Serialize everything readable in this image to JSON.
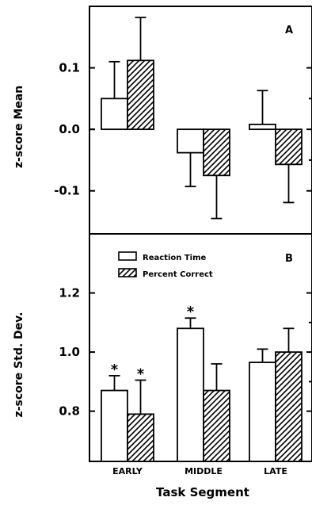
{
  "chart_data": [
    {
      "type": "bar",
      "panel_label": "A",
      "ylabel": "z-score Mean",
      "categories": [
        "EARLY",
        "MIDDLE",
        "LATE"
      ],
      "ylim": [
        -0.17,
        0.2
      ],
      "yticks": [
        -0.1,
        0.0,
        0.1
      ],
      "ytick_labels": [
        "-0.1",
        "0.0",
        "0.1"
      ],
      "series": [
        {
          "name": "Reaction Time",
          "pattern": "open",
          "values": [
            0.05,
            -0.038,
            0.008
          ],
          "errors": [
            0.06,
            0.055,
            0.055
          ],
          "error_side": [
            "up",
            "down",
            "up"
          ]
        },
        {
          "name": "Percent Correct",
          "pattern": "hatched",
          "values": [
            0.112,
            -0.075,
            -0.057
          ],
          "errors": [
            0.07,
            0.07,
            0.062
          ],
          "error_side": [
            "up",
            "down",
            "down"
          ]
        }
      ],
      "significant": [
        [
          false,
          false
        ],
        [
          false,
          false
        ],
        [
          false,
          false
        ]
      ]
    },
    {
      "type": "bar",
      "panel_label": "B",
      "ylabel": "z-score Std. Dev.",
      "xlabel": "Task Segment",
      "categories": [
        "EARLY",
        "MIDDLE",
        "LATE"
      ],
      "ylim": [
        0.63,
        1.4
      ],
      "yticks": [
        0.8,
        1.0,
        1.2
      ],
      "ytick_labels": [
        "0.8",
        "1.0",
        "1.2"
      ],
      "legend": {
        "placement": "top-left",
        "entries": [
          "Reaction Time",
          "Percent Correct"
        ]
      },
      "series": [
        {
          "name": "Reaction Time",
          "pattern": "open",
          "values": [
            0.87,
            1.08,
            0.965
          ],
          "errors": [
            0.05,
            0.035,
            0.045
          ],
          "error_side": [
            "up",
            "up",
            "up"
          ]
        },
        {
          "name": "Percent Correct",
          "pattern": "hatched",
          "values": [
            0.79,
            0.87,
            1.0
          ],
          "errors": [
            0.115,
            0.09,
            0.08
          ],
          "error_side": [
            "up",
            "up",
            "up"
          ]
        }
      ],
      "significant": [
        [
          true,
          true
        ],
        [
          true,
          false
        ],
        [
          false,
          false
        ]
      ],
      "significance_marker": "*"
    }
  ]
}
